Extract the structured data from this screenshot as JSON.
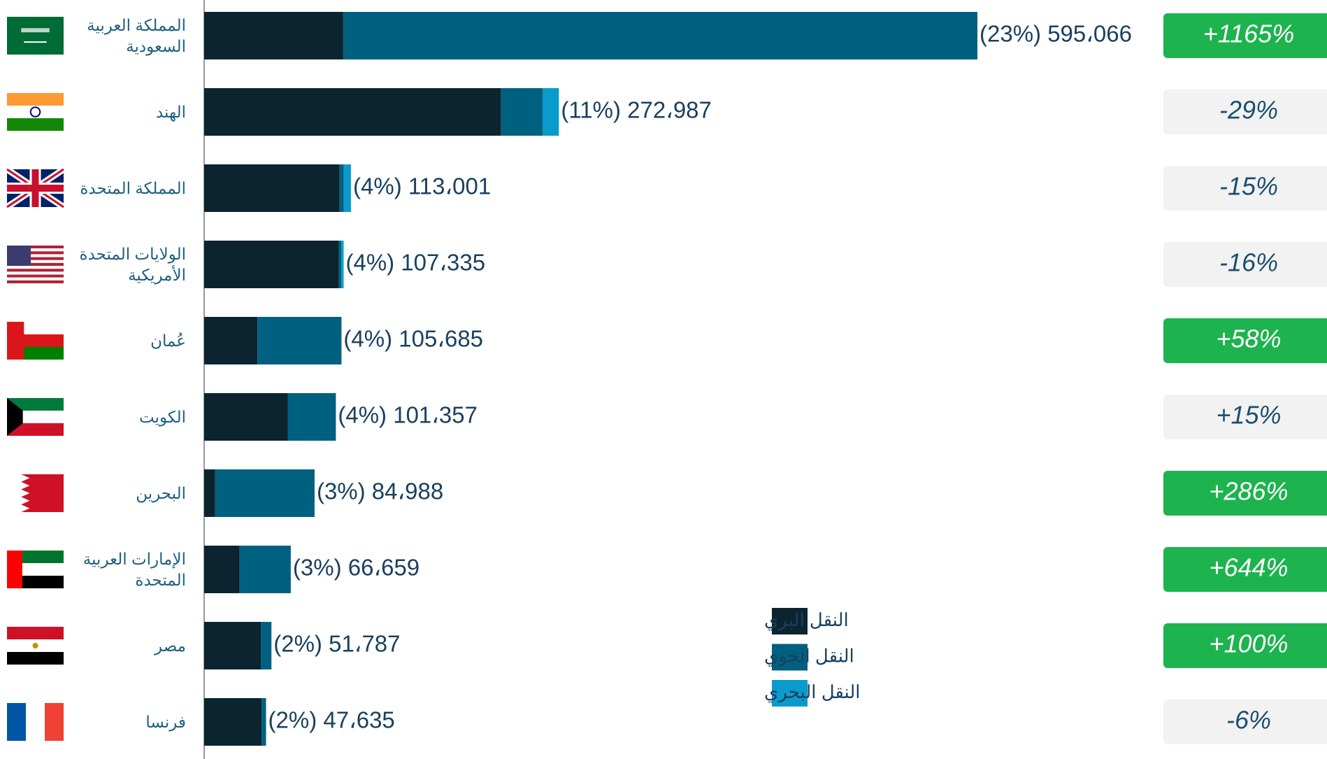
{
  "chart_data": {
    "type": "bar",
    "orientation": "horizontal",
    "stacked": true,
    "categories": [
      "المملكة العربية السعودية",
      "الهند",
      "المملكة المتحدة",
      "الولايات المتحدة الأمريكية",
      "عُمان",
      "الكويت",
      "البحرين",
      "الإمارات العربية المتحدة",
      "مصر",
      "فرنسا"
    ],
    "series": [
      {
        "name": "النقل البري",
        "color": "#0b2430",
        "values": [
          107000,
          228500,
          104200,
          103535,
          41000,
          64500,
          8500,
          27300,
          43600,
          44300
        ]
      },
      {
        "name": "النقل الجوي",
        "color": "#00607f",
        "values": [
          488066,
          31900,
          3300,
          2000,
          64685,
          36857,
          76488,
          39359,
          8187,
          3335
        ]
      },
      {
        "name": "النقل البحري",
        "color": "#0a9bcc",
        "values": [
          0,
          12587,
          5501,
          1800,
          0,
          0,
          0,
          0,
          0,
          0
        ]
      }
    ],
    "totals": [
      595066,
      272987,
      113001,
      107335,
      105685,
      101357,
      84988,
      66659,
      51787,
      47635
    ],
    "total_labels": [
      "(23%) 595،066",
      "(11%) 272،987",
      "(4%) 113،001",
      "(4%) 107،335",
      "(4%) 105،685",
      "(4%) 101،357",
      "(3%) 84،988",
      "(3%) 66،659",
      "(2%) 51،787",
      "(2%) 47،635"
    ],
    "changes": [
      1165,
      -29,
      -15,
      -16,
      58,
      15,
      286,
      644,
      100,
      -6
    ],
    "change_labels": [
      "+1165%",
      "-29%",
      "-15%",
      "-16%",
      "+58%",
      "+15%",
      "+286%",
      "+644%",
      "+100%",
      "-6%"
    ],
    "change_highlight": [
      true,
      false,
      false,
      false,
      true,
      false,
      true,
      true,
      true,
      false
    ],
    "highlight_color": "#1db34e",
    "base_color": "#f2f2f2",
    "xlim": [
      0,
      600000
    ]
  }
}
